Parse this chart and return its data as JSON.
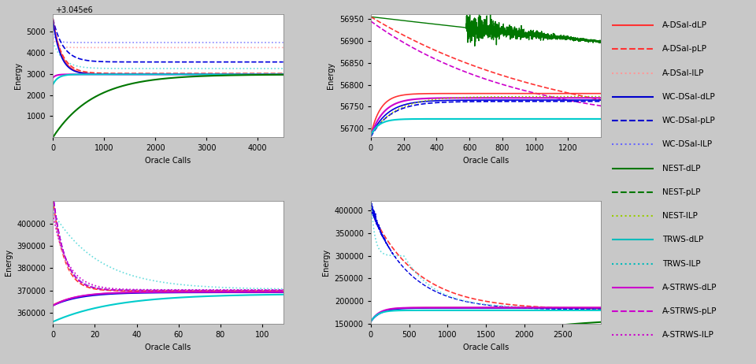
{
  "legend_entries": [
    {
      "label": "A-DSal-dLP",
      "color": "#ff3333",
      "ls": "-",
      "lw": 1.5
    },
    {
      "label": "A-DSal-pLP",
      "color": "#ff3333",
      "ls": "--",
      "lw": 1.5
    },
    {
      "label": "A-DSal-ILP",
      "color": "#ff9999",
      "ls": ":",
      "lw": 1.5
    },
    {
      "label": "WC-DSal-dLP",
      "color": "#0000cc",
      "ls": "-",
      "lw": 1.5
    },
    {
      "label": "WC-DSal-pLP",
      "color": "#0000cc",
      "ls": "--",
      "lw": 1.5
    },
    {
      "label": "WC-DSal-ILP",
      "color": "#6666ff",
      "ls": ":",
      "lw": 1.5
    },
    {
      "label": "NEST-dLP",
      "color": "#007700",
      "ls": "-",
      "lw": 1.5
    },
    {
      "label": "NEST-pLP",
      "color": "#007700",
      "ls": "--",
      "lw": 1.5
    },
    {
      "label": "NEST-ILP",
      "color": "#99cc00",
      "ls": ":",
      "lw": 1.5
    },
    {
      "label": "TRWS-dLP",
      "color": "#00bbbb",
      "ls": "-",
      "lw": 1.5
    },
    {
      "label": "TRWS-ILP",
      "color": "#00bbbb",
      "ls": ":",
      "lw": 1.5
    },
    {
      "label": "A-STRWS-dLP",
      "color": "#cc00cc",
      "ls": "-",
      "lw": 1.5
    },
    {
      "label": "A-STRWS-pLP",
      "color": "#cc00cc",
      "ls": "--",
      "lw": 1.5
    },
    {
      "label": "A-STRWS-ILP",
      "color": "#cc00cc",
      "ls": ":",
      "lw": 1.5
    }
  ],
  "xlabel": "Oracle Calls",
  "ylabel": "Energy",
  "tl_xlim": [
    0,
    4500
  ],
  "tl_ylim": [
    0,
    5800
  ],
  "tl_offset": "+3.045e6",
  "tl_xticks": [
    0,
    1000,
    2000,
    3000,
    4000
  ],
  "tl_yticks": [
    1000,
    2000,
    3000,
    4000,
    5000
  ],
  "tr_xlim": [
    0,
    1400
  ],
  "tr_ylim": [
    56680,
    56960
  ],
  "tr_xticks": [
    0,
    200,
    400,
    600,
    800,
    1000,
    1200
  ],
  "tr_yticks": [
    56700,
    56750,
    56800,
    56850,
    56900,
    56950
  ],
  "bl_xlim": [
    0,
    110
  ],
  "bl_ylim": [
    355000,
    410000
  ],
  "bl_xticks": [
    0,
    20,
    40,
    60,
    80,
    100
  ],
  "bl_yticks": [
    360000,
    370000,
    380000,
    390000,
    400000
  ],
  "br_xlim": [
    0,
    3000
  ],
  "br_ylim": [
    150000,
    420000
  ],
  "br_xticks": [
    0,
    500,
    1000,
    1500,
    2000,
    2500
  ],
  "br_yticks": [
    150000,
    200000,
    250000,
    300000,
    350000,
    400000
  ]
}
